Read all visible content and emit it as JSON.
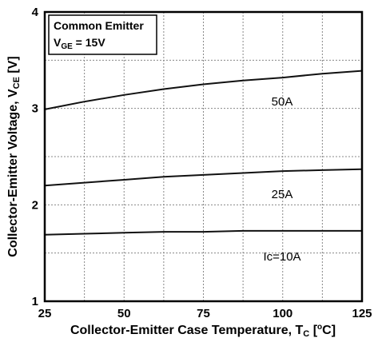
{
  "chart_data": {
    "type": "line",
    "legend_box": {
      "line1": "Common Emitter",
      "line2_prefix": "V",
      "line2_sub": "GE",
      "line2_suffix": " = 15V"
    },
    "xlabel_prefix": "Collector-Emitter Case Temperature, T",
    "xlabel_sub": "C",
    "xlabel_open": " [",
    "xlabel_sup": "o",
    "xlabel_close": "C]",
    "ylabel_prefix": "Collector-Emitter Voltage, V",
    "ylabel_sub": "CE",
    "ylabel_suffix": " [V]",
    "xlim": [
      25,
      125
    ],
    "ylim": [
      1,
      4
    ],
    "x_ticks": [
      "25",
      "50",
      "75",
      "100",
      "125"
    ],
    "y_ticks": [
      "1",
      "2",
      "3",
      "4"
    ],
    "grid": true,
    "series": [
      {
        "name": "50A",
        "x": [
          25,
          37.5,
          50,
          62.5,
          75,
          87.5,
          100,
          112.5,
          125
        ],
        "y": [
          2.99,
          3.07,
          3.14,
          3.2,
          3.25,
          3.29,
          3.32,
          3.36,
          3.39
        ]
      },
      {
        "name": "25A",
        "x": [
          25,
          37.5,
          50,
          62.5,
          75,
          87.5,
          100,
          112.5,
          125
        ],
        "y": [
          2.2,
          2.23,
          2.26,
          2.29,
          2.31,
          2.33,
          2.35,
          2.36,
          2.37
        ]
      },
      {
        "name": "Ic=10A",
        "x": [
          25,
          37.5,
          50,
          62.5,
          75,
          87.5,
          100,
          112.5,
          125
        ],
        "y": [
          1.69,
          1.7,
          1.71,
          1.72,
          1.72,
          1.73,
          1.73,
          1.73,
          1.73
        ]
      }
    ]
  }
}
